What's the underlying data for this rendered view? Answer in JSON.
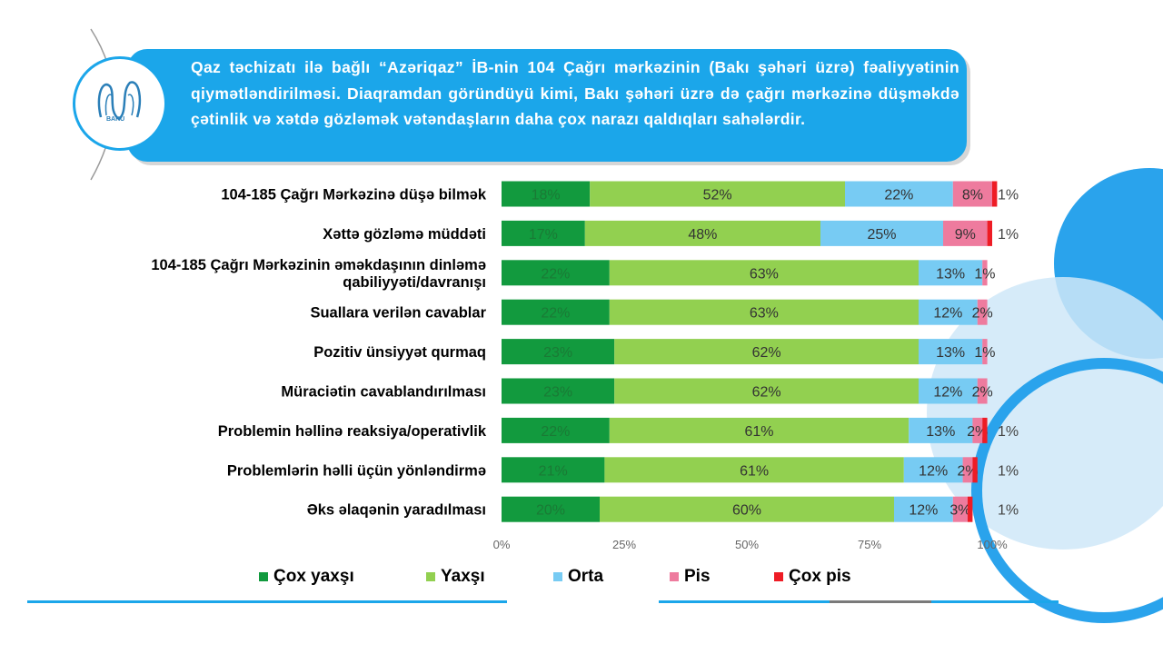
{
  "header": {
    "text": "Qaz təchizatı ilə bağlı “Azəriqaz” İB-nin 104 Çağrı mərkəzinin (Bakı şəhəri üzrə) fəaliyyətinin qiymətləndirilməsi. Diaqramdan göründüyü kimi, Bakı şəhəri üzrə də çağrı mərkəzinə düşməkdə çətinlik və xətdə gözləmək vətəndaşların daha çox narazı qaldıqları sahələrdir."
  },
  "logo": {
    "label": "BAKU"
  },
  "colors": {
    "accent": "#1ba6ea",
    "series": [
      "#129a3e",
      "#92d050",
      "#77cbf3",
      "#ee7b9e",
      "#ee1c25"
    ]
  },
  "chart_data": {
    "type": "bar",
    "orientation": "horizontal",
    "stacked": true,
    "categories": [
      "104-185 Çağrı Mərkəzinə düşə bilmək",
      "Xəttə gözləmə müddəti",
      "104-185 Çağrı Mərkəzinin əməkdaşının dinləmə qabiliyyəti/davranışı",
      "Suallara verilən cavablar",
      "Pozitiv ünsiyyət qurmaq",
      "Müraciətin cavablandırılması",
      "Problemin həllinə reaksiya/operativlik",
      "Problemlərin həlli üçün yönləndirmə",
      "Əks əlaqənin yaradılması"
    ],
    "category_lines": [
      [
        "104-185 Çağrı Mərkəzinə düşə bilmək"
      ],
      [
        "Xəttə gözləmə müddəti"
      ],
      [
        "104-185 Çağrı Mərkəzinin əməkdaşının dinləmə",
        "qabiliyyəti/davranışı"
      ],
      [
        "Suallara verilən cavablar"
      ],
      [
        "Pozitiv ünsiyyət qurmaq"
      ],
      [
        "Müraciətin cavablandırılması"
      ],
      [
        "Problemin həllinə reaksiya/operativlik"
      ],
      [
        "Problemlərin həlli üçün yönləndirmə"
      ],
      [
        "Əks əlaqənin yaradılması"
      ]
    ],
    "series": [
      {
        "name": "Çox yaxşı",
        "values": [
          18,
          17,
          22,
          22,
          23,
          23,
          22,
          21,
          20
        ]
      },
      {
        "name": "Yaxşı",
        "values": [
          52,
          48,
          63,
          63,
          62,
          62,
          61,
          61,
          60
        ]
      },
      {
        "name": "Orta",
        "values": [
          22,
          25,
          13,
          12,
          13,
          12,
          13,
          12,
          12
        ]
      },
      {
        "name": "Pis",
        "values": [
          8,
          9,
          1,
          2,
          1,
          2,
          2,
          2,
          3
        ]
      },
      {
        "name": "Çox pis",
        "values": [
          1,
          1,
          0,
          0,
          0,
          0,
          1,
          1,
          1
        ]
      }
    ],
    "data_labels": [
      [
        "18%",
        "52%",
        "22%",
        "8%",
        "1%"
      ],
      [
        "17%",
        "48%",
        "25%",
        "9%",
        "1%"
      ],
      [
        "22%",
        "63%",
        "13%",
        "1%",
        ""
      ],
      [
        "22%",
        "63%",
        "12%",
        "2%",
        ""
      ],
      [
        "23%",
        "62%",
        "13%",
        "1%",
        ""
      ],
      [
        "23%",
        "62%",
        "12%",
        "2%",
        ""
      ],
      [
        "22%",
        "61%",
        "13%",
        "2%",
        "1%"
      ],
      [
        "21%",
        "61%",
        "12%",
        "2%",
        "1%"
      ],
      [
        "20%",
        "60%",
        "12%",
        "3%",
        "1%"
      ]
    ],
    "xticks": [
      "0%",
      "25%",
      "50%",
      "75%",
      "100%"
    ],
    "xlim": [
      0,
      100
    ],
    "legend_position": "bottom",
    "grid": false
  }
}
